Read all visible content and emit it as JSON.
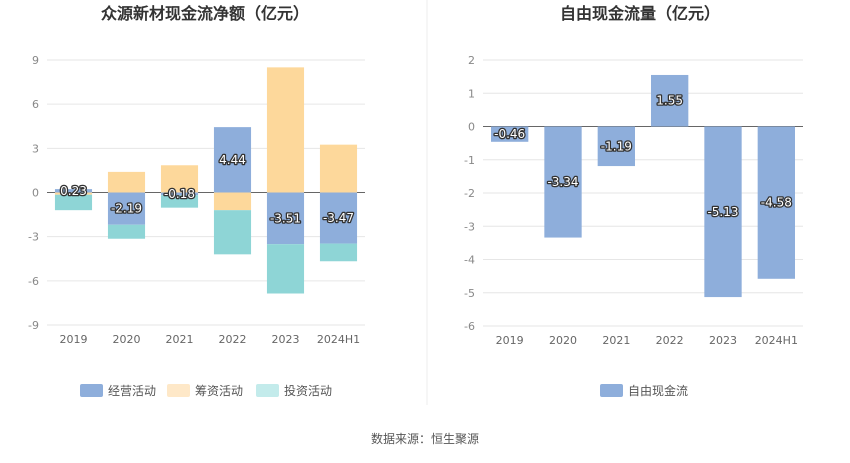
{
  "source_note": "数据来源：恒生聚源",
  "colors": {
    "operating": "#8eaedb",
    "financing": "#fdd89b",
    "investing": "#8ed5d6",
    "free_cash_flow": "#8eaedb"
  },
  "chart_data": [
    {
      "type": "bar",
      "stacked": true,
      "title": "众源新材现金流净额（亿元）",
      "categories": [
        "2019",
        "2020",
        "2021",
        "2022",
        "2023",
        "2024H1"
      ],
      "ylim": [
        -9,
        9
      ],
      "yticks": [
        9,
        6,
        3,
        0,
        -3,
        -6,
        -9
      ],
      "grid": true,
      "legend_position": "bottom",
      "series": [
        {
          "name": "经营活动",
          "values": [
            0.23,
            -2.19,
            -0.18,
            4.44,
            -3.51,
            -3.47
          ]
        },
        {
          "name": "筹资活动",
          "values": [
            -0.15,
            1.4,
            1.85,
            -1.2,
            8.5,
            3.25
          ]
        },
        {
          "name": "投资活动",
          "values": [
            -1.05,
            -0.95,
            -0.85,
            -3.0,
            -3.35,
            -1.2
          ]
        }
      ],
      "data_labels": [
        "0.23",
        "-2.19",
        "-0.18",
        "4.44",
        "-3.51",
        "-3.47"
      ]
    },
    {
      "type": "bar",
      "title": "自由现金流量（亿元）",
      "categories": [
        "2019",
        "2020",
        "2021",
        "2022",
        "2023",
        "2024H1"
      ],
      "ylim": [
        -6,
        2
      ],
      "yticks": [
        2,
        1,
        0,
        -1,
        -2,
        -3,
        -4,
        -5,
        -6
      ],
      "grid": true,
      "legend_position": "bottom",
      "series": [
        {
          "name": "自由现金流",
          "values": [
            -0.46,
            -3.34,
            -1.19,
            1.55,
            -5.13,
            -4.58
          ]
        }
      ],
      "data_labels": [
        "-0.46",
        "-3.34",
        "-1.19",
        "1.55",
        "-5.13",
        "-4.58"
      ]
    }
  ]
}
